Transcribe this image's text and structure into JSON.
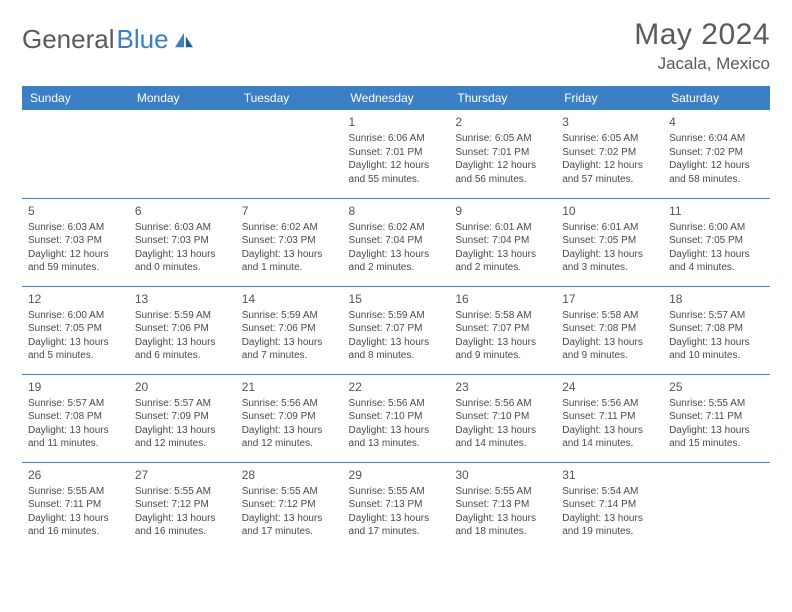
{
  "brand": {
    "part1": "General",
    "part2": "Blue"
  },
  "title": "May 2024",
  "location": "Jacala, Mexico",
  "colors": {
    "header_bg": "#3b7fc4",
    "header_text": "#ffffff",
    "border": "#3b7fc4",
    "body_text": "#4a4a4a",
    "title_text": "#5a5a5a",
    "page_bg": "#ffffff"
  },
  "day_headers": [
    "Sunday",
    "Monday",
    "Tuesday",
    "Wednesday",
    "Thursday",
    "Friday",
    "Saturday"
  ],
  "weeks": [
    [
      {
        "num": "",
        "lines": [
          "",
          "",
          "",
          ""
        ]
      },
      {
        "num": "",
        "lines": [
          "",
          "",
          "",
          ""
        ]
      },
      {
        "num": "",
        "lines": [
          "",
          "",
          "",
          ""
        ]
      },
      {
        "num": "1",
        "lines": [
          "Sunrise: 6:06 AM",
          "Sunset: 7:01 PM",
          "Daylight: 12 hours",
          "and 55 minutes."
        ]
      },
      {
        "num": "2",
        "lines": [
          "Sunrise: 6:05 AM",
          "Sunset: 7:01 PM",
          "Daylight: 12 hours",
          "and 56 minutes."
        ]
      },
      {
        "num": "3",
        "lines": [
          "Sunrise: 6:05 AM",
          "Sunset: 7:02 PM",
          "Daylight: 12 hours",
          "and 57 minutes."
        ]
      },
      {
        "num": "4",
        "lines": [
          "Sunrise: 6:04 AM",
          "Sunset: 7:02 PM",
          "Daylight: 12 hours",
          "and 58 minutes."
        ]
      }
    ],
    [
      {
        "num": "5",
        "lines": [
          "Sunrise: 6:03 AM",
          "Sunset: 7:03 PM",
          "Daylight: 12 hours",
          "and 59 minutes."
        ]
      },
      {
        "num": "6",
        "lines": [
          "Sunrise: 6:03 AM",
          "Sunset: 7:03 PM",
          "Daylight: 13 hours",
          "and 0 minutes."
        ]
      },
      {
        "num": "7",
        "lines": [
          "Sunrise: 6:02 AM",
          "Sunset: 7:03 PM",
          "Daylight: 13 hours",
          "and 1 minute."
        ]
      },
      {
        "num": "8",
        "lines": [
          "Sunrise: 6:02 AM",
          "Sunset: 7:04 PM",
          "Daylight: 13 hours",
          "and 2 minutes."
        ]
      },
      {
        "num": "9",
        "lines": [
          "Sunrise: 6:01 AM",
          "Sunset: 7:04 PM",
          "Daylight: 13 hours",
          "and 2 minutes."
        ]
      },
      {
        "num": "10",
        "lines": [
          "Sunrise: 6:01 AM",
          "Sunset: 7:05 PM",
          "Daylight: 13 hours",
          "and 3 minutes."
        ]
      },
      {
        "num": "11",
        "lines": [
          "Sunrise: 6:00 AM",
          "Sunset: 7:05 PM",
          "Daylight: 13 hours",
          "and 4 minutes."
        ]
      }
    ],
    [
      {
        "num": "12",
        "lines": [
          "Sunrise: 6:00 AM",
          "Sunset: 7:05 PM",
          "Daylight: 13 hours",
          "and 5 minutes."
        ]
      },
      {
        "num": "13",
        "lines": [
          "Sunrise: 5:59 AM",
          "Sunset: 7:06 PM",
          "Daylight: 13 hours",
          "and 6 minutes."
        ]
      },
      {
        "num": "14",
        "lines": [
          "Sunrise: 5:59 AM",
          "Sunset: 7:06 PM",
          "Daylight: 13 hours",
          "and 7 minutes."
        ]
      },
      {
        "num": "15",
        "lines": [
          "Sunrise: 5:59 AM",
          "Sunset: 7:07 PM",
          "Daylight: 13 hours",
          "and 8 minutes."
        ]
      },
      {
        "num": "16",
        "lines": [
          "Sunrise: 5:58 AM",
          "Sunset: 7:07 PM",
          "Daylight: 13 hours",
          "and 9 minutes."
        ]
      },
      {
        "num": "17",
        "lines": [
          "Sunrise: 5:58 AM",
          "Sunset: 7:08 PM",
          "Daylight: 13 hours",
          "and 9 minutes."
        ]
      },
      {
        "num": "18",
        "lines": [
          "Sunrise: 5:57 AM",
          "Sunset: 7:08 PM",
          "Daylight: 13 hours",
          "and 10 minutes."
        ]
      }
    ],
    [
      {
        "num": "19",
        "lines": [
          "Sunrise: 5:57 AM",
          "Sunset: 7:08 PM",
          "Daylight: 13 hours",
          "and 11 minutes."
        ]
      },
      {
        "num": "20",
        "lines": [
          "Sunrise: 5:57 AM",
          "Sunset: 7:09 PM",
          "Daylight: 13 hours",
          "and 12 minutes."
        ]
      },
      {
        "num": "21",
        "lines": [
          "Sunrise: 5:56 AM",
          "Sunset: 7:09 PM",
          "Daylight: 13 hours",
          "and 12 minutes."
        ]
      },
      {
        "num": "22",
        "lines": [
          "Sunrise: 5:56 AM",
          "Sunset: 7:10 PM",
          "Daylight: 13 hours",
          "and 13 minutes."
        ]
      },
      {
        "num": "23",
        "lines": [
          "Sunrise: 5:56 AM",
          "Sunset: 7:10 PM",
          "Daylight: 13 hours",
          "and 14 minutes."
        ]
      },
      {
        "num": "24",
        "lines": [
          "Sunrise: 5:56 AM",
          "Sunset: 7:11 PM",
          "Daylight: 13 hours",
          "and 14 minutes."
        ]
      },
      {
        "num": "25",
        "lines": [
          "Sunrise: 5:55 AM",
          "Sunset: 7:11 PM",
          "Daylight: 13 hours",
          "and 15 minutes."
        ]
      }
    ],
    [
      {
        "num": "26",
        "lines": [
          "Sunrise: 5:55 AM",
          "Sunset: 7:11 PM",
          "Daylight: 13 hours",
          "and 16 minutes."
        ]
      },
      {
        "num": "27",
        "lines": [
          "Sunrise: 5:55 AM",
          "Sunset: 7:12 PM",
          "Daylight: 13 hours",
          "and 16 minutes."
        ]
      },
      {
        "num": "28",
        "lines": [
          "Sunrise: 5:55 AM",
          "Sunset: 7:12 PM",
          "Daylight: 13 hours",
          "and 17 minutes."
        ]
      },
      {
        "num": "29",
        "lines": [
          "Sunrise: 5:55 AM",
          "Sunset: 7:13 PM",
          "Daylight: 13 hours",
          "and 17 minutes."
        ]
      },
      {
        "num": "30",
        "lines": [
          "Sunrise: 5:55 AM",
          "Sunset: 7:13 PM",
          "Daylight: 13 hours",
          "and 18 minutes."
        ]
      },
      {
        "num": "31",
        "lines": [
          "Sunrise: 5:54 AM",
          "Sunset: 7:14 PM",
          "Daylight: 13 hours",
          "and 19 minutes."
        ]
      },
      {
        "num": "",
        "lines": [
          "",
          "",
          "",
          ""
        ]
      }
    ]
  ]
}
